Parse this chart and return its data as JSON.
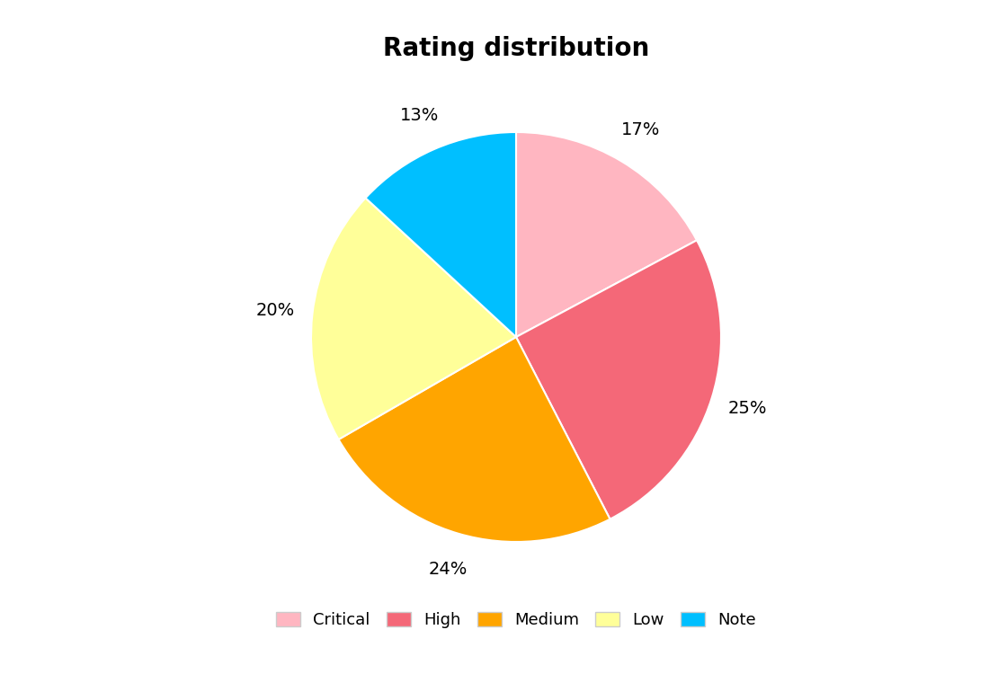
{
  "title": "Rating distribution",
  "labels": [
    "Critical",
    "High",
    "Medium",
    "Low",
    "Note"
  ],
  "values": [
    17,
    25,
    24,
    20,
    13
  ],
  "colors": [
    "#FFB6C1",
    "#F46878",
    "#FFA500",
    "#FFFF99",
    "#00BFFF"
  ],
  "pct_labels": [
    "17%",
    "25%",
    "24%",
    "20%",
    "13%"
  ],
  "background_color": "#FFFFFF",
  "title_fontsize": 20,
  "legend_fontsize": 13,
  "pct_fontsize": 14,
  "startangle": 90,
  "figsize": [
    11.2,
    7.5
  ],
  "dpi": 100
}
